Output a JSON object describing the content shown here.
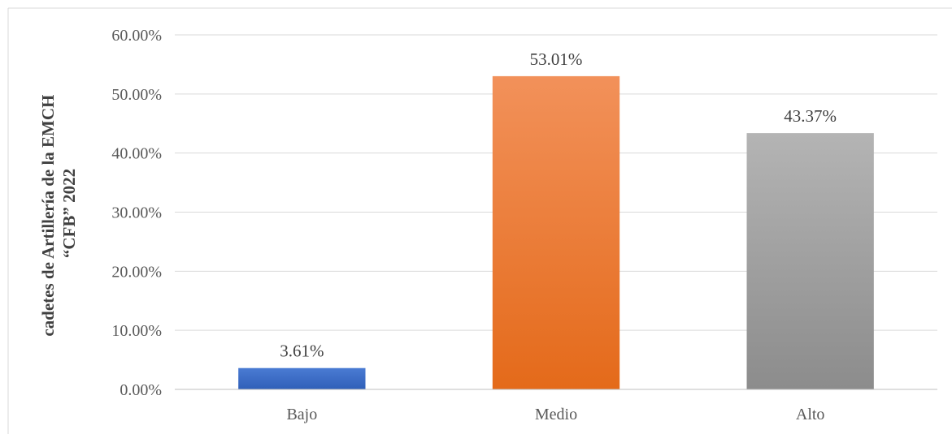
{
  "chart_data": {
    "type": "bar",
    "title": "",
    "xlabel": "",
    "ylabel_lines": [
      "cadetes de Artillería  de la EMCH",
      "“CFB” 2022"
    ],
    "categories": [
      "Bajo",
      "Medio",
      "Alto"
    ],
    "values": [
      3.61,
      53.01,
      43.37
    ],
    "data_labels": [
      "3.61%",
      "53.01%",
      "43.37%"
    ],
    "ylim": [
      0,
      60
    ],
    "yticks": [
      0,
      10,
      20,
      30,
      40,
      50,
      60
    ],
    "ytick_labels": [
      "0.00%",
      "10.00%",
      "20.00%",
      "30.00%",
      "40.00%",
      "50.00%",
      "60.00%"
    ],
    "grid": true,
    "legend": "none",
    "colors": {
      "bar_gradients": [
        [
          "#4a7bd3",
          "#2f5fb8"
        ],
        [
          "#f2915a",
          "#e46a1a"
        ],
        [
          "#b4b4b4",
          "#8c8c8c"
        ]
      ],
      "grid": "#d9d9d9",
      "axis": "#bfbfbf",
      "frame": "#d9d9d9"
    }
  }
}
